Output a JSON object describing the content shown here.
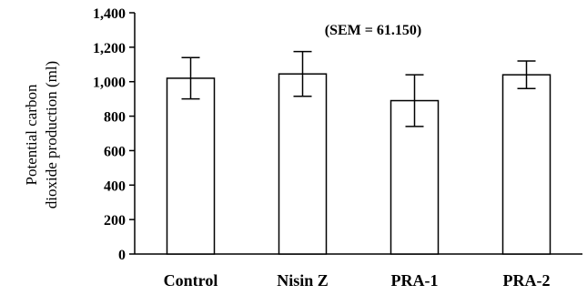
{
  "chart_data": {
    "type": "bar",
    "title": "",
    "ylabel_lines": [
      "Potential carbon",
      "dioxide production (ml)"
    ],
    "xlabel": "",
    "annotation": "(SEM = 61.150)",
    "categories": [
      "Control",
      "Nisin Z",
      "PRA-1",
      "PRA-2"
    ],
    "values": [
      1020,
      1045,
      890,
      1040
    ],
    "error_plus": [
      120,
      130,
      150,
      80
    ],
    "error_minus": [
      120,
      130,
      150,
      80
    ],
    "ylim": [
      0,
      1400
    ],
    "yticks": [
      0,
      200,
      400,
      600,
      800,
      1000,
      1200,
      1400
    ],
    "ytick_labels": [
      "0",
      "200",
      "400",
      "600",
      "800",
      "1,000",
      "1,200",
      "1,400"
    ],
    "grid": false,
    "legend": "none"
  }
}
